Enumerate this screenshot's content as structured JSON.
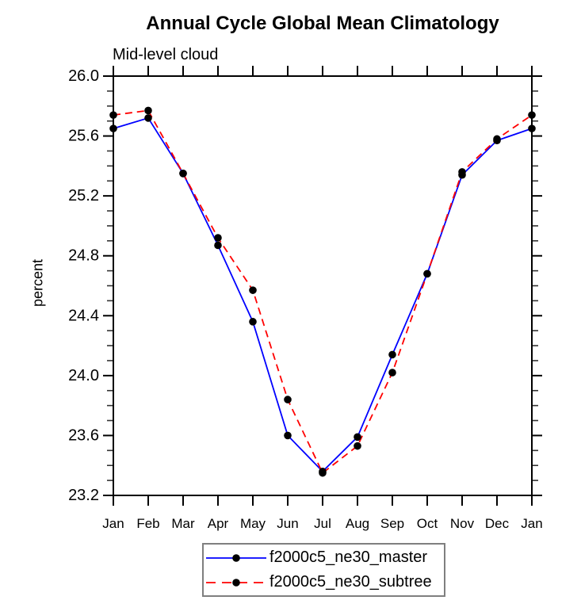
{
  "page": {
    "background": "#ffffff"
  },
  "chart_data": {
    "type": "line",
    "title": "Annual Cycle Global Mean Climatology",
    "subtitle": "Mid-level cloud",
    "ylabel": "percent",
    "xlabel": "",
    "x_categories": [
      "Jan",
      "Feb",
      "Mar",
      "Apr",
      "May",
      "Jun",
      "Jul",
      "Aug",
      "Sep",
      "Oct",
      "Nov",
      "Dec",
      "Jan"
    ],
    "ylim": [
      23.2,
      26.0
    ],
    "y_major_ticks": [
      23.2,
      23.6,
      24.0,
      24.4,
      24.8,
      25.2,
      25.6,
      26.0
    ],
    "y_minor_step": 0.1,
    "grid": "off",
    "axis_color": "#000000",
    "legend_position": "bottom-center",
    "series": [
      {
        "name": "f2000c5_ne30_master",
        "line_color": "#0000ff",
        "line_style": "solid",
        "marker": "filled-circle",
        "marker_color": "#000000",
        "values": [
          25.65,
          25.72,
          25.35,
          24.87,
          24.36,
          23.6,
          23.36,
          23.59,
          24.14,
          24.68,
          25.34,
          25.57,
          25.65
        ]
      },
      {
        "name": "f2000c5_ne30_subtree",
        "line_color": "#ff0000",
        "line_style": "dashed",
        "marker": "filled-circle",
        "marker_color": "#000000",
        "values": [
          25.74,
          25.77,
          25.35,
          24.92,
          24.57,
          23.84,
          23.35,
          23.53,
          24.02,
          24.68,
          25.36,
          25.58,
          25.74
        ]
      }
    ]
  }
}
